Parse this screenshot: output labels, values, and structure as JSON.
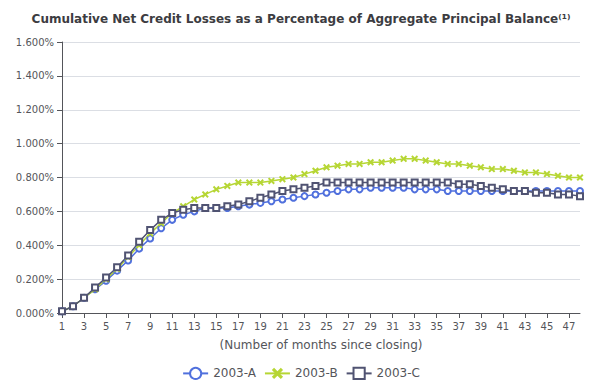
{
  "chart_data": {
    "type": "line",
    "title": "Cumulative Net Credit Losses as a Percentage of Aggregate Principal Balance⁽¹⁾",
    "xlabel": "(Number of months since closing)",
    "x": [
      1,
      2,
      3,
      4,
      5,
      6,
      7,
      8,
      9,
      10,
      11,
      12,
      13,
      14,
      15,
      16,
      17,
      18,
      19,
      20,
      21,
      22,
      23,
      24,
      25,
      26,
      27,
      28,
      29,
      30,
      31,
      32,
      33,
      34,
      35,
      36,
      37,
      38,
      39,
      40,
      41,
      42,
      43,
      44,
      45,
      46,
      47,
      48
    ],
    "series": [
      {
        "name": "2003-A",
        "marker": "circle",
        "line_style": "solid",
        "values": [
          0.0001,
          0.0004,
          0.0009,
          0.0014,
          0.0019,
          0.0025,
          0.0031,
          0.0038,
          0.0044,
          0.005,
          0.0055,
          0.0058,
          0.006,
          0.0062,
          0.0062,
          0.0062,
          0.0063,
          0.0064,
          0.0065,
          0.0066,
          0.0067,
          0.0068,
          0.0069,
          0.007,
          0.0071,
          0.0072,
          0.0073,
          0.0073,
          0.0074,
          0.0074,
          0.0074,
          0.0074,
          0.0073,
          0.0073,
          0.0073,
          0.0072,
          0.0072,
          0.0072,
          0.0072,
          0.0072,
          0.0072,
          0.0072,
          0.0072,
          0.0072,
          0.0072,
          0.0072,
          0.0072,
          0.0072
        ]
      },
      {
        "name": "2003-B",
        "marker": "x",
        "line_style": "solid",
        "values": [
          0.0001,
          0.0004,
          0.0009,
          0.0014,
          0.002,
          0.0026,
          0.0033,
          0.004,
          0.0047,
          0.0053,
          0.0059,
          0.0063,
          0.0067,
          0.007,
          0.0073,
          0.0075,
          0.0077,
          0.0077,
          0.0077,
          0.0078,
          0.0079,
          0.008,
          0.0082,
          0.0084,
          0.0086,
          0.0087,
          0.0088,
          0.0088,
          0.0089,
          0.0089,
          0.009,
          0.0091,
          0.0091,
          0.009,
          0.0089,
          0.0088,
          0.0088,
          0.0087,
          0.0086,
          0.0085,
          0.0085,
          0.0084,
          0.0083,
          0.0083,
          0.0082,
          0.0081,
          0.008,
          0.008
        ]
      },
      {
        "name": "2003-C",
        "marker": "square",
        "line_style": "solid",
        "values": [
          0.0001,
          0.0004,
          0.0009,
          0.0015,
          0.0021,
          0.0027,
          0.0034,
          0.0042,
          0.0049,
          0.0055,
          0.0059,
          0.0061,
          0.0062,
          0.0062,
          0.0062,
          0.0063,
          0.0064,
          0.0066,
          0.0068,
          0.007,
          0.0072,
          0.0073,
          0.0074,
          0.0075,
          0.0077,
          0.0077,
          0.0077,
          0.0077,
          0.0077,
          0.0077,
          0.0077,
          0.0077,
          0.0077,
          0.0077,
          0.0077,
          0.0077,
          0.0076,
          0.0076,
          0.0075,
          0.0074,
          0.0073,
          0.0072,
          0.0072,
          0.0071,
          0.0071,
          0.007,
          0.007,
          0.0069
        ]
      }
    ],
    "xlim": [
      1,
      48
    ],
    "xticks": [
      1,
      3,
      5,
      7,
      9,
      11,
      13,
      15,
      17,
      19,
      21,
      23,
      25,
      27,
      29,
      31,
      33,
      35,
      37,
      39,
      41,
      43,
      45,
      47
    ],
    "ylim": [
      0,
      0.016
    ],
    "yticks": [
      {
        "value": 0,
        "label": "0.000%"
      },
      {
        "value": 0.002,
        "label": "0.200%"
      },
      {
        "value": 0.004,
        "label": "0.400%"
      },
      {
        "value": 0.006,
        "label": "0.600%"
      },
      {
        "value": 0.008,
        "label": "0.800%"
      },
      {
        "value": 0.01,
        "label": "1.000%"
      },
      {
        "value": 0.012,
        "label": "1.200%"
      },
      {
        "value": 0.014,
        "label": "1.400%"
      },
      {
        "value": 0.016,
        "label": "1.600%"
      }
    ],
    "grid": true,
    "legend": "bottom"
  }
}
